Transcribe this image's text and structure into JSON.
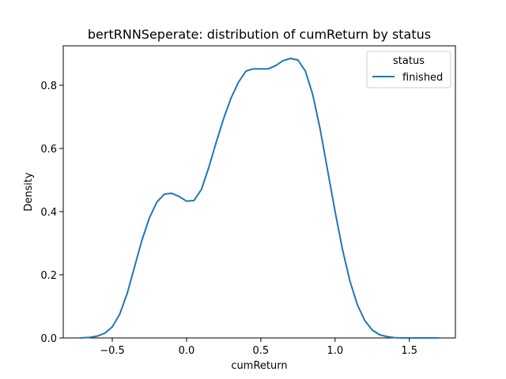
{
  "chart_data": {
    "type": "line",
    "title": "bertRNNSeperate: distribution of cumReturn by status",
    "xlabel": "cumReturn",
    "ylabel": "Density",
    "xlim": [
      -0.83,
      1.81
    ],
    "ylim": [
      0,
      0.925
    ],
    "x_ticks": [
      -0.5,
      0.0,
      0.5,
      1.0,
      1.5
    ],
    "x_tick_labels": [
      "−0.5",
      "0.0",
      "0.5",
      "1.0",
      "1.5"
    ],
    "y_ticks": [
      0.0,
      0.2,
      0.4,
      0.6,
      0.8
    ],
    "y_tick_labels": [
      "0.0",
      "0.2",
      "0.4",
      "0.6",
      "0.8"
    ],
    "grid": false,
    "legend": {
      "title": "status",
      "placement": "top-right"
    },
    "series": [
      {
        "name": "finished",
        "color": "#1f77b4",
        "x": [
          -0.72,
          -0.65,
          -0.6,
          -0.55,
          -0.5,
          -0.45,
          -0.4,
          -0.35,
          -0.3,
          -0.25,
          -0.2,
          -0.15,
          -0.1,
          -0.05,
          0.0,
          0.05,
          0.1,
          0.15,
          0.2,
          0.25,
          0.3,
          0.35,
          0.4,
          0.45,
          0.5,
          0.55,
          0.6,
          0.65,
          0.7,
          0.75,
          0.8,
          0.85,
          0.9,
          0.95,
          1.0,
          1.05,
          1.1,
          1.15,
          1.2,
          1.25,
          1.3,
          1.35,
          1.4,
          1.45,
          1.5,
          1.55,
          1.6,
          1.65,
          1.7
        ],
        "y": [
          0.0,
          0.002,
          0.006,
          0.015,
          0.035,
          0.075,
          0.14,
          0.225,
          0.31,
          0.38,
          0.43,
          0.455,
          0.458,
          0.448,
          0.433,
          0.435,
          0.47,
          0.54,
          0.62,
          0.695,
          0.76,
          0.81,
          0.845,
          0.852,
          0.852,
          0.852,
          0.862,
          0.878,
          0.885,
          0.88,
          0.845,
          0.77,
          0.66,
          0.53,
          0.4,
          0.28,
          0.18,
          0.105,
          0.055,
          0.025,
          0.01,
          0.004,
          0.001,
          0.0,
          0.0,
          0.0,
          0.0,
          0.0,
          0.0
        ]
      }
    ]
  }
}
